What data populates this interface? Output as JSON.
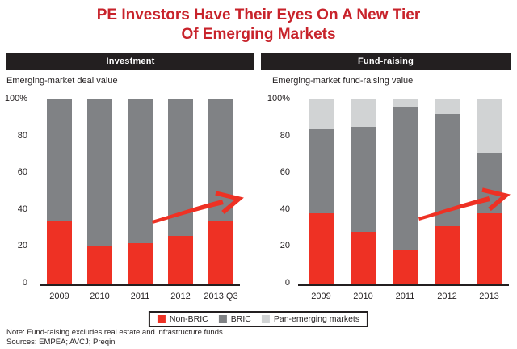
{
  "title": {
    "line1": "PE Investors Have Their Eyes On A New Tier",
    "line2": "Of Emerging Markets"
  },
  "colors": {
    "red": "#EE3124",
    "dark_gray": "#808285",
    "light_gray": "#D1D3D4",
    "black": "#231F20",
    "title_red": "#C8232B"
  },
  "legend": {
    "items": [
      {
        "label": "Non-BRIC",
        "color": "#EE3124"
      },
      {
        "label": "BRIC",
        "color": "#808285"
      },
      {
        "label": "Pan-emerging markets",
        "color": "#D1D3D4"
      }
    ]
  },
  "note": "Note: Fund-raising excludes real estate and infrastructure funds",
  "sources": "Sources: EMPEA; AVCJ; Preqin",
  "chart_data": [
    {
      "type": "bar",
      "stacked": true,
      "header": "Investment",
      "subtitle": "Emerging-market deal value",
      "categories": [
        "2009",
        "2010",
        "2011",
        "2012",
        "2013 Q3"
      ],
      "series": [
        {
          "name": "Non-BRIC",
          "color": "#EE3124",
          "values": [
            34,
            20,
            22,
            26,
            34
          ]
        },
        {
          "name": "BRIC",
          "color": "#808285",
          "values": [
            66,
            80,
            78,
            74,
            66
          ]
        },
        {
          "name": "Pan-emerging markets",
          "color": "#D1D3D4",
          "values": [
            0,
            0,
            0,
            0,
            0
          ]
        }
      ],
      "ylim": [
        0,
        100
      ],
      "yticks": [
        {
          "value": 100,
          "label": "100%"
        },
        {
          "value": 80,
          "label": "80"
        },
        {
          "value": 60,
          "label": "60"
        },
        {
          "value": 40,
          "label": "40"
        },
        {
          "value": 20,
          "label": "20"
        },
        {
          "value": 0,
          "label": "0"
        }
      ],
      "annotations": [
        "red upward trend arrow"
      ]
    },
    {
      "type": "bar",
      "stacked": true,
      "header": "Fund-raising",
      "subtitle": "Emerging-market fund-raising value",
      "categories": [
        "2009",
        "2010",
        "2011",
        "2012",
        "2013"
      ],
      "series": [
        {
          "name": "Non-BRIC",
          "color": "#EE3124",
          "values": [
            38,
            28,
            18,
            31,
            38
          ]
        },
        {
          "name": "BRIC",
          "color": "#808285",
          "values": [
            46,
            57,
            78,
            61,
            33
          ]
        },
        {
          "name": "Pan-emerging markets",
          "color": "#D1D3D4",
          "values": [
            16,
            15,
            4,
            8,
            29
          ]
        }
      ],
      "ylim": [
        0,
        100
      ],
      "yticks": [
        {
          "value": 100,
          "label": "100%"
        },
        {
          "value": 80,
          "label": "80"
        },
        {
          "value": 60,
          "label": "60"
        },
        {
          "value": 40,
          "label": "40"
        },
        {
          "value": 20,
          "label": "20"
        },
        {
          "value": 0,
          "label": "0"
        }
      ],
      "annotations": [
        "red upward trend arrow"
      ]
    }
  ]
}
